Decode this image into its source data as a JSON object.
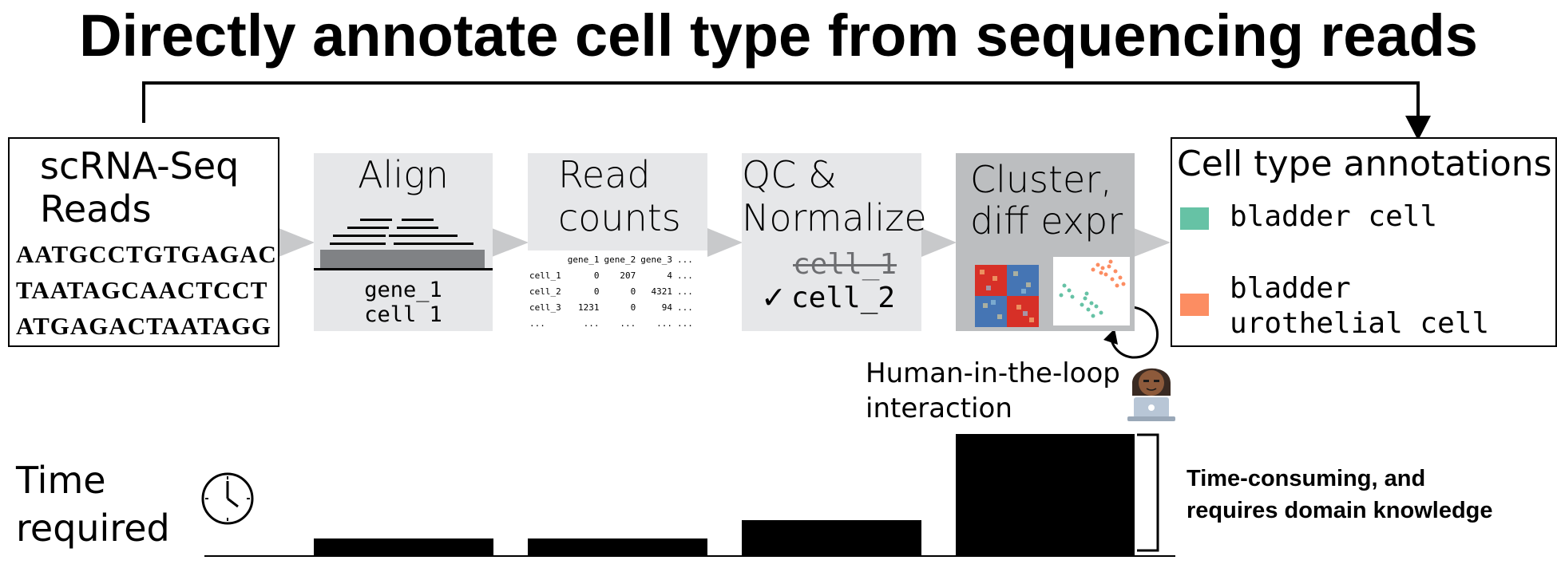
{
  "title": "Directly annotate cell type from sequencing reads",
  "reads_box": {
    "label_line1": "scRNA-Seq",
    "label_line2": "Reads",
    "sequences": [
      "AATGCCTGTGAGAC",
      "TAATAGCAACTCCT",
      "ATGAGACTAATAGG"
    ]
  },
  "align_box": {
    "label": "Align",
    "gene_label": "gene_1",
    "cell_label": "cell 1"
  },
  "counts_box": {
    "label_line1": "Read",
    "label_line2": "counts",
    "table": {
      "headers": [
        "",
        "gene_1",
        "gene_2",
        "gene_3",
        "..."
      ],
      "rows": [
        [
          "cell_1",
          "0",
          "207",
          "4",
          "..."
        ],
        [
          "cell_2",
          "0",
          "0",
          "4321",
          "..."
        ],
        [
          "cell_3",
          "1231",
          "0",
          "94",
          "..."
        ],
        [
          "...",
          "...",
          "...",
          "...",
          "..."
        ]
      ]
    }
  },
  "qc_box": {
    "label_line1": "QC &",
    "label_line2": "Normalize",
    "removed_cell": "cell_1",
    "check_mark": "✓",
    "kept_cell": "cell_2"
  },
  "cluster_box": {
    "label_line1": "Cluster,",
    "label_line2": "diff expr"
  },
  "human_loop": {
    "line1": "Human-in-the-loop",
    "line2": "interaction"
  },
  "annotations_box": {
    "title": "Cell type annotations",
    "items": [
      {
        "label_line1": "bladder cell",
        "label_line2": "",
        "color": "#66c2a5"
      },
      {
        "label_line1": "bladder",
        "label_line2": "urothelial cell",
        "color": "#fc8d62"
      }
    ]
  },
  "time_label": {
    "line1": "Time",
    "line2": "required"
  },
  "time_note": {
    "line1": "Time-consuming, and",
    "line2": "requires domain knowledge"
  },
  "time_bars": [
    {
      "step": "Align",
      "relative_time": 0.14
    },
    {
      "step": "Read counts",
      "relative_time": 0.14
    },
    {
      "step": "QC & Normalize",
      "relative_time": 0.29
    },
    {
      "step": "Cluster, diff expr",
      "relative_time": 1.0
    }
  ],
  "colors": {
    "panel_gray": "#e6e7e9",
    "panel_dark_gray": "#bcbec0",
    "arrow_gray": "#c8c9cb",
    "bladder_cell": "#66c2a5",
    "urothelial_cell": "#fc8d62"
  }
}
